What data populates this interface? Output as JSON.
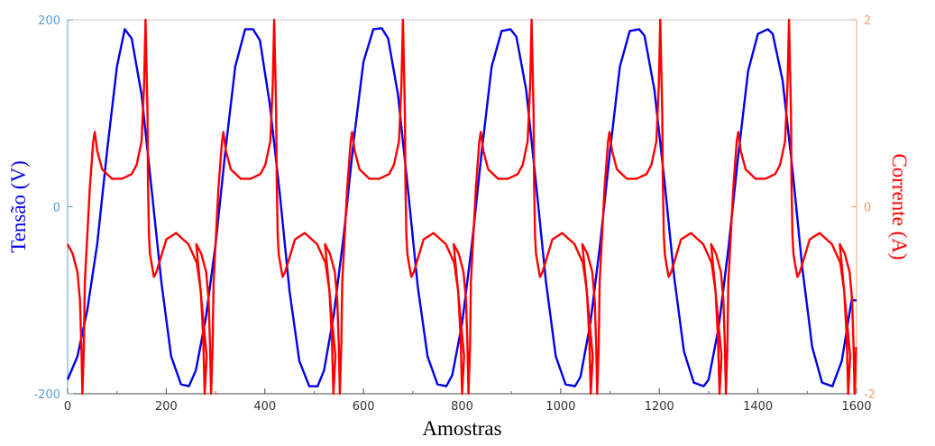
{
  "chart_data": {
    "type": "line",
    "title": "",
    "xlabel": "Amostras",
    "ylabel_left": "Tensão (V)",
    "ylabel_right": "Corrente (A)",
    "xlim": [
      0,
      1600
    ],
    "ylim_left": [
      -200,
      200
    ],
    "ylim_right": [
      -2,
      2
    ],
    "x_ticks": [
      0,
      200,
      400,
      600,
      800,
      1000,
      1200,
      1400,
      1600
    ],
    "y_ticks_left": [
      -200,
      0,
      200
    ],
    "y_ticks_right": [
      -2,
      0,
      2
    ],
    "grid": false,
    "legend": "none",
    "series": [
      {
        "axis": "left",
        "color": "#0000ee",
        "period_samples": 261,
        "x": [
          0,
          20,
          40,
          60,
          80,
          100,
          116,
          130,
          150,
          170,
          190,
          210,
          230,
          246,
          260,
          280,
          300,
          320,
          340,
          360,
          376,
          390,
          410,
          430,
          450,
          470,
          490,
          507,
          520,
          540,
          560,
          580,
          600,
          620,
          637,
          650,
          670,
          690,
          710,
          730,
          750,
          768,
          780,
          800,
          820,
          840,
          860,
          880,
          898,
          910,
          930,
          950,
          970,
          990,
          1010,
          1029,
          1040,
          1060,
          1080,
          1100,
          1120,
          1140,
          1159,
          1170,
          1190,
          1210,
          1230,
          1250,
          1270,
          1290,
          1300,
          1320,
          1340,
          1360,
          1380,
          1400,
          1420,
          1430,
          1450,
          1470,
          1490,
          1510,
          1530,
          1551,
          1570,
          1590,
          1600
        ],
        "y": [
          -185,
          -160,
          -110,
          -40,
          60,
          150,
          190,
          180,
          120,
          20,
          -80,
          -160,
          -190,
          -192,
          -175,
          -120,
          -40,
          60,
          150,
          190,
          190,
          178,
          110,
          15,
          -90,
          -165,
          -192,
          -192,
          -175,
          -115,
          -30,
          70,
          155,
          190,
          191,
          180,
          120,
          20,
          -85,
          -160,
          -190,
          -192,
          -180,
          -125,
          -40,
          60,
          150,
          188,
          190,
          182,
          125,
          25,
          -80,
          -160,
          -190,
          -192,
          -182,
          -125,
          -40,
          60,
          150,
          188,
          190,
          183,
          125,
          30,
          -75,
          -155,
          -188,
          -192,
          -185,
          -130,
          -45,
          55,
          145,
          185,
          190,
          185,
          135,
          40,
          -65,
          -150,
          -188,
          -192,
          -165,
          -100,
          -100
        ]
      },
      {
        "axis": "right",
        "color": "#ff0000",
        "period_samples": 261,
        "x": [
          0,
          10,
          20,
          25,
          28,
          30,
          33,
          35,
          45,
          52,
          55,
          60,
          70,
          90,
          110,
          130,
          140,
          150,
          155,
          158,
          162,
          163,
          165,
          167,
          170,
          175,
          180,
          200,
          220,
          245,
          262,
          270,
          275,
          278,
          282
        ],
        "y": [
          -0.4,
          -0.5,
          -0.7,
          -1.0,
          -1.5,
          -2.0,
          -1.5,
          -0.8,
          0.2,
          0.7,
          0.8,
          0.6,
          0.4,
          0.3,
          0.3,
          0.35,
          0.45,
          0.7,
          1.3,
          2.0,
          1.0,
          0.3,
          -0.3,
          -0.5,
          -0.6,
          -0.75,
          -0.7,
          -0.35,
          -0.28,
          -0.4,
          -0.6,
          -0.9,
          -1.4,
          -2.0,
          -1.6
        ]
      }
    ]
  }
}
